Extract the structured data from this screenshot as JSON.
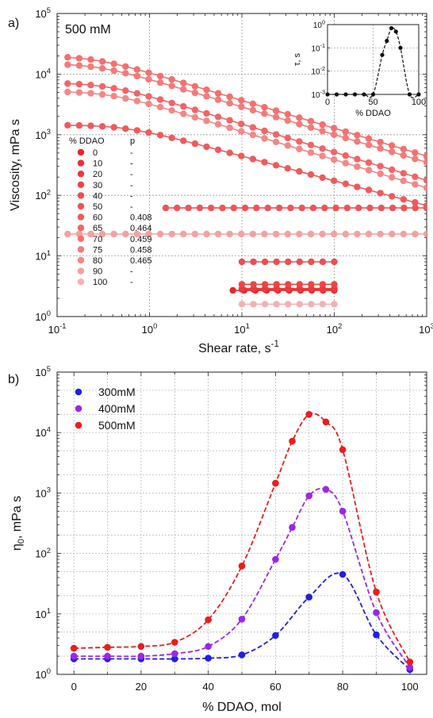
{
  "chart_data": [
    {
      "panel_label": "a)",
      "type": "scatter",
      "annotation": "500 mM",
      "xlabel": "Shear rate, s",
      "xlabel_sup": "-1",
      "ylabel": "Viscosity, mPa s",
      "xscale": "log",
      "yscale": "log",
      "xlim": [
        0.1,
        1000
      ],
      "ylim": [
        1,
        100000
      ],
      "x_ticks": [
        {
          "b": "10",
          "e": "-1"
        },
        {
          "b": "10",
          "e": "0"
        },
        {
          "b": "10",
          "e": "1"
        },
        {
          "b": "10",
          "e": "2"
        },
        {
          "b": "10",
          "e": "3"
        }
      ],
      "y_ticks": [
        {
          "b": "10",
          "e": "0"
        },
        {
          "b": "10",
          "e": "1"
        },
        {
          "b": "10",
          "e": "2"
        },
        {
          "b": "10",
          "e": "3"
        },
        {
          "b": "10",
          "e": "4"
        },
        {
          "b": "10",
          "e": "5"
        }
      ],
      "grid": true,
      "legend_header": {
        "col1": "% DDAO",
        "col2": "p"
      },
      "legend_placement": "left-middle",
      "series": [
        {
          "name": "0",
          "p": "-",
          "color": "#e8262a",
          "model": "newtonian",
          "eta0": 2.7,
          "x_range": [
            8,
            100
          ]
        },
        {
          "name": "10",
          "p": "-",
          "color": "#ea3035",
          "model": "newtonian",
          "eta0": 2.8,
          "x_range": [
            10,
            100
          ]
        },
        {
          "name": "20",
          "p": "-",
          "color": "#ec3a3c",
          "model": "newtonian",
          "eta0": 2.9,
          "x_range": [
            10,
            100
          ]
        },
        {
          "name": "30",
          "p": "-",
          "color": "#ee4446",
          "model": "newtonian",
          "eta0": 3.4,
          "x_range": [
            10,
            100
          ]
        },
        {
          "name": "40",
          "p": "-",
          "color": "#ef4e4f",
          "model": "newtonian",
          "eta0": 8.0,
          "x_range": [
            10,
            100
          ]
        },
        {
          "name": "50",
          "p": "-",
          "color": "#f05456",
          "model": "newtonian",
          "eta0": 62,
          "x_range": [
            1.5,
            1000
          ]
        },
        {
          "name": "60",
          "p": "0.408",
          "color": "#f05a5c",
          "model": "shear-thinning",
          "eta0": 1450,
          "x_range": [
            0.13,
            1000
          ]
        },
        {
          "name": "65",
          "p": "0.464",
          "color": "#f26467",
          "model": "shear-thinning",
          "eta0": 7200,
          "x_range": [
            0.13,
            1000
          ]
        },
        {
          "name": "70",
          "p": "0.459",
          "color": "#f3706f",
          "model": "shear-thinning",
          "eta0": 20000,
          "x_range": [
            0.13,
            1000
          ]
        },
        {
          "name": "75",
          "p": "0.458",
          "color": "#f37b7b",
          "model": "shear-thinning",
          "eta0": 15000,
          "x_range": [
            0.13,
            1000
          ]
        },
        {
          "name": "80",
          "p": "0.465",
          "color": "#f48787",
          "model": "shear-thinning",
          "eta0": 5200,
          "x_range": [
            0.13,
            1000
          ]
        },
        {
          "name": "90",
          "p": "-",
          "color": "#f5a0a0",
          "model": "newtonian",
          "eta0": 23,
          "x_range": [
            0.13,
            1000
          ]
        },
        {
          "name": "100",
          "p": "-",
          "color": "#f6b0b0",
          "model": "newtonian",
          "eta0": 1.6,
          "x_range": [
            10,
            100
          ]
        }
      ],
      "inset": {
        "type": "line",
        "xlabel": "% DDAO",
        "ylabel": "τ, s",
        "xlim": [
          0,
          100
        ],
        "ylim": [
          0.001,
          1
        ],
        "x_ticks": [
          "0",
          "50",
          "100"
        ],
        "y_ticks": [
          {
            "b": "10",
            "e": "-3"
          },
          {
            "b": "10",
            "e": "-2"
          },
          {
            "b": "10",
            "e": "-1"
          },
          {
            "b": "10",
            "e": "0"
          }
        ],
        "x": [
          0,
          10,
          20,
          30,
          40,
          50,
          60,
          65,
          70,
          75,
          80,
          90,
          100
        ],
        "y": [
          0.001,
          0.001,
          0.001,
          0.001,
          0.001,
          0.001,
          0.05,
          0.2,
          0.7,
          0.5,
          0.1,
          0.001,
          0.001
        ]
      }
    },
    {
      "panel_label": "b)",
      "type": "scatter",
      "xlabel": "% DDAO, mol",
      "ylabel": "η",
      "ylabel_sub": "0",
      "ylabel_rest": ", mPa s",
      "xscale": "linear",
      "yscale": "log",
      "xlim": [
        -5,
        105
      ],
      "ylim": [
        1,
        100000
      ],
      "x_ticks": [
        "0",
        "20",
        "40",
        "60",
        "80",
        "100"
      ],
      "y_ticks": [
        {
          "b": "10",
          "e": "0"
        },
        {
          "b": "10",
          "e": "1"
        },
        {
          "b": "10",
          "e": "2"
        },
        {
          "b": "10",
          "e": "3"
        },
        {
          "b": "10",
          "e": "4"
        },
        {
          "b": "10",
          "e": "5"
        }
      ],
      "grid": true,
      "legend_placement": "top-left",
      "x": [
        0,
        10,
        20,
        30,
        40,
        50,
        60,
        65,
        70,
        75,
        80,
        90,
        100
      ],
      "series": [
        {
          "name": "300mM",
          "color": "#1f1fe6",
          "values": [
            1.8,
            1.8,
            1.8,
            1.8,
            1.85,
            2.1,
            4.4,
            null,
            19,
            null,
            45,
            4.5,
            1.2
          ]
        },
        {
          "name": "400mM",
          "color": "#9b27e8",
          "values": [
            2.0,
            2.0,
            2.0,
            2.2,
            2.9,
            8.2,
            80,
            270,
            900,
            1150,
            500,
            10.5,
            1.3
          ]
        },
        {
          "name": "500mM",
          "color": "#ee1c1c",
          "values": [
            2.7,
            2.8,
            2.9,
            3.4,
            8.0,
            62,
            1450,
            7200,
            20000,
            15000,
            5200,
            23,
            1.6
          ]
        }
      ]
    }
  ]
}
